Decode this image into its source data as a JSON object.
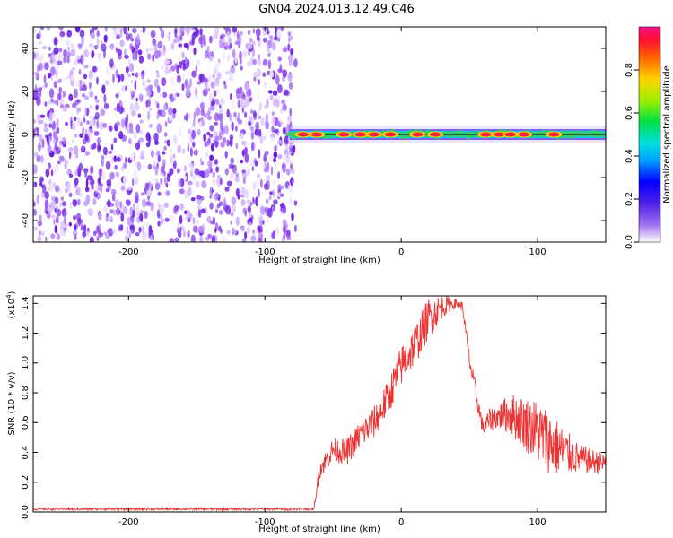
{
  "title": "GN04.2024.013.12.49.C46",
  "colors": {
    "line": "#ee3333",
    "ridge_low": "#33cc66",
    "ridge_high": "#ee2244",
    "noise": "#7a2fe6"
  },
  "chart_data": [
    {
      "type": "heatmap",
      "xlabel": "Height of straight line (km)",
      "ylabel": "Frequency (Hz)",
      "xlim": [
        -270,
        150
      ],
      "ylim": [
        -50,
        50
      ],
      "xticks": [
        -200,
        -100,
        0,
        100
      ],
      "xtick_labels": [
        "-200",
        "-100",
        "0",
        "100"
      ],
      "yticks": [
        -40,
        -20,
        0,
        20,
        40
      ],
      "ytick_labels": [
        "-40",
        "-20",
        "0",
        "20",
        "40"
      ],
      "noise_region": [
        -270,
        -80
      ],
      "signal_frequency_hz": 0,
      "signal_start_km": -82,
      "strong_peaks_km": [
        -72,
        -62,
        -42,
        -30,
        -20,
        -8,
        12,
        25,
        62,
        72,
        80,
        90,
        112
      ],
      "colorbar": {
        "label": "Normalized spectral amplitude",
        "range": [
          0,
          1
        ],
        "ticks": [
          0,
          0.2,
          0.4,
          0.6,
          0.8
        ],
        "tick_labels": [
          "0.0",
          "0.2",
          "0.4",
          "0.6",
          "0.8"
        ]
      }
    },
    {
      "type": "line",
      "xlabel": "Height of straight line (km)",
      "ylabel": "SNR (10 * v/v)",
      "yscale_label": "(x10",
      "yscale_exp": "4",
      "xlim": [
        -270,
        150
      ],
      "ylim": [
        0,
        1.45
      ],
      "xticks": [
        -200,
        -100,
        0,
        100
      ],
      "xtick_labels": [
        "-200",
        "-100",
        "0",
        "100"
      ],
      "yticks": [
        0,
        0.2,
        0.4,
        0.6,
        0.8,
        1.0,
        1.2,
        1.4
      ],
      "ytick_labels": [
        "0.0",
        "0.2",
        "0.4",
        "0.6",
        "0.8",
        "1.0",
        "1.2",
        "1.4"
      ],
      "x": [
        -270,
        -200,
        -100,
        -64,
        -60,
        -50,
        -40,
        -30,
        -20,
        -10,
        0,
        10,
        20,
        30,
        40,
        45,
        50,
        55,
        60,
        65,
        70,
        80,
        90,
        100,
        110,
        120,
        130,
        140,
        150
      ],
      "y": [
        0.02,
        0.02,
        0.02,
        0.02,
        0.28,
        0.42,
        0.4,
        0.52,
        0.6,
        0.76,
        0.98,
        1.12,
        1.3,
        1.38,
        1.4,
        1.38,
        1.02,
        0.78,
        0.56,
        0.62,
        0.64,
        0.66,
        0.6,
        0.54,
        0.46,
        0.4,
        0.36,
        0.34,
        0.32
      ],
      "noise_amplitude": [
        0.008,
        0.008,
        0.008,
        0.008,
        0.06,
        0.08,
        0.09,
        0.1,
        0.11,
        0.12,
        0.14,
        0.14,
        0.14,
        0.08,
        0.03,
        0.03,
        0.06,
        0.07,
        0.05,
        0.08,
        0.08,
        0.14,
        0.18,
        0.22,
        0.22,
        0.16,
        0.1,
        0.08,
        0.08
      ]
    }
  ]
}
